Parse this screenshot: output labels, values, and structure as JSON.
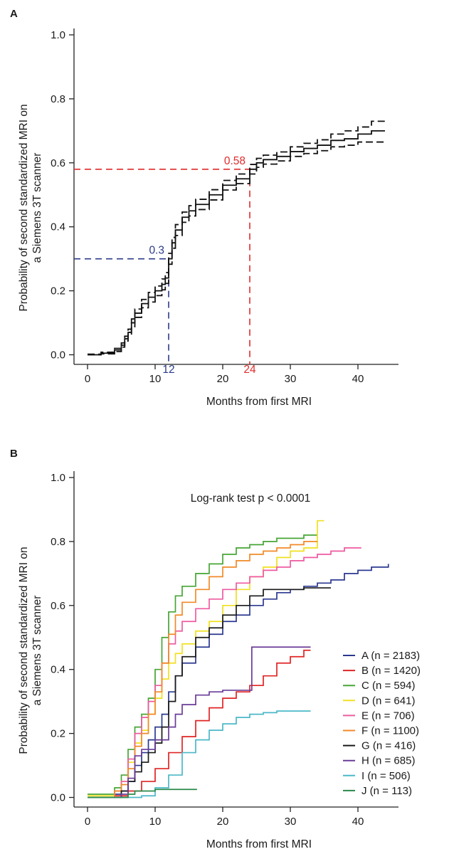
{
  "chart_data": [
    {
      "panel": "A",
      "type": "line",
      "xlabel": "Months from first MRI",
      "ylabel_line1": "Probability of second standardized MRI on",
      "ylabel_line2": "a Siemens 3T scanner",
      "xlim": [
        -2,
        46
      ],
      "ylim": [
        -0.03,
        1.02
      ],
      "xticks": [
        "0",
        "10",
        "20",
        "30",
        "40"
      ],
      "yticks": [
        "0.0",
        "0.2",
        "0.4",
        "0.6",
        "0.8",
        "1.0"
      ],
      "annotations": [
        {
          "label_x": "12",
          "label_y": "0.3",
          "x": 12,
          "y": 0.3,
          "color": "#2a3a8a"
        },
        {
          "label_x": "24",
          "label_y": "0.58",
          "x": 24,
          "y": 0.58,
          "color": "#e02b2b"
        }
      ],
      "series": [
        {
          "name": "estimate",
          "style": "solid",
          "x": [
            0,
            2,
            4,
            5,
            5.5,
            6,
            6.5,
            7,
            8,
            9,
            10,
            11,
            11.5,
            12,
            12.5,
            13,
            14,
            15,
            16,
            18,
            20,
            22,
            24,
            25,
            26,
            28,
            30,
            32,
            34,
            36,
            38,
            40,
            42,
            44
          ],
          "y": [
            0,
            0.005,
            0.015,
            0.03,
            0.05,
            0.07,
            0.1,
            0.13,
            0.16,
            0.18,
            0.2,
            0.22,
            0.24,
            0.3,
            0.35,
            0.39,
            0.43,
            0.45,
            0.47,
            0.5,
            0.53,
            0.55,
            0.58,
            0.6,
            0.61,
            0.62,
            0.635,
            0.645,
            0.655,
            0.67,
            0.675,
            0.69,
            0.7,
            0.7
          ]
        },
        {
          "name": "upper 95% CI",
          "style": "dashed",
          "x": [
            0,
            2,
            4,
            5,
            5.5,
            6,
            6.5,
            7,
            8,
            9,
            10,
            11,
            11.5,
            12,
            12.5,
            13,
            14,
            15,
            16,
            18,
            20,
            22,
            24,
            25,
            26,
            28,
            30,
            32,
            34,
            36,
            38,
            40,
            42,
            44
          ],
          "y": [
            0.002,
            0.008,
            0.02,
            0.037,
            0.058,
            0.08,
            0.112,
            0.143,
            0.173,
            0.195,
            0.215,
            0.237,
            0.257,
            0.317,
            0.367,
            0.407,
            0.446,
            0.466,
            0.486,
            0.516,
            0.545,
            0.565,
            0.595,
            0.614,
            0.624,
            0.634,
            0.65,
            0.661,
            0.672,
            0.69,
            0.7,
            0.712,
            0.73,
            0.73
          ]
        },
        {
          "name": "lower 95% CI",
          "style": "dashed",
          "x": [
            0,
            2,
            4,
            5,
            5.5,
            6,
            6.5,
            7,
            8,
            9,
            10,
            11,
            11.5,
            12,
            12.5,
            13,
            14,
            15,
            16,
            18,
            20,
            22,
            24,
            25,
            26,
            28,
            30,
            32,
            34,
            36,
            38,
            40,
            42,
            44
          ],
          "y": [
            0,
            0.003,
            0.01,
            0.024,
            0.043,
            0.06,
            0.088,
            0.117,
            0.147,
            0.165,
            0.185,
            0.203,
            0.223,
            0.283,
            0.333,
            0.373,
            0.414,
            0.434,
            0.454,
            0.484,
            0.515,
            0.535,
            0.565,
            0.586,
            0.596,
            0.606,
            0.62,
            0.629,
            0.638,
            0.65,
            0.655,
            0.665,
            0.665,
            0.665
          ]
        }
      ]
    },
    {
      "panel": "B",
      "type": "line",
      "title": "Log-rank test p < 0.0001",
      "xlabel": "Months from first MRI",
      "ylabel_line1": "Probability of second standardized MRI on",
      "ylabel_line2": "a Siemens 3T scanner",
      "xlim": [
        -2,
        46
      ],
      "ylim": [
        -0.03,
        1.02
      ],
      "xticks": [
        "0",
        "10",
        "20",
        "30",
        "40"
      ],
      "yticks": [
        "0.0",
        "0.2",
        "0.4",
        "0.6",
        "0.8",
        "1.0"
      ],
      "legend_placement": "bottom-right",
      "series": [
        {
          "name": "A (n = 2183)",
          "color": "#2b3990",
          "x": [
            0,
            4,
            5,
            6,
            7,
            8,
            9,
            10,
            11,
            12,
            13,
            14,
            16,
            18,
            20,
            22,
            24,
            26,
            28,
            30,
            32,
            34,
            36,
            38,
            40,
            42,
            44.5
          ],
          "y": [
            0,
            0.01,
            0.02,
            0.05,
            0.1,
            0.14,
            0.18,
            0.22,
            0.26,
            0.33,
            0.38,
            0.42,
            0.47,
            0.51,
            0.55,
            0.57,
            0.6,
            0.62,
            0.64,
            0.65,
            0.66,
            0.67,
            0.68,
            0.7,
            0.71,
            0.72,
            0.73
          ]
        },
        {
          "name": "B (n = 1420)",
          "color": "#e02424",
          "x": [
            0,
            4,
            6,
            8,
            10,
            12,
            14,
            16,
            18,
            20,
            22,
            24,
            26,
            28,
            30,
            32,
            33
          ],
          "y": [
            0,
            0.005,
            0.02,
            0.05,
            0.09,
            0.14,
            0.19,
            0.24,
            0.28,
            0.31,
            0.33,
            0.35,
            0.38,
            0.42,
            0.44,
            0.46,
            0.46
          ]
        },
        {
          "name": "C (n = 594)",
          "color": "#46a535",
          "x": [
            0,
            4,
            5,
            6,
            7,
            8,
            9,
            10,
            11,
            12,
            13,
            14,
            16,
            18,
            20,
            22,
            24,
            26,
            28,
            30,
            32,
            34
          ],
          "y": [
            0.01,
            0.03,
            0.07,
            0.15,
            0.22,
            0.26,
            0.31,
            0.4,
            0.5,
            0.58,
            0.63,
            0.66,
            0.7,
            0.73,
            0.76,
            0.78,
            0.79,
            0.8,
            0.81,
            0.81,
            0.82,
            0.82
          ]
        },
        {
          "name": "D (n = 641)",
          "color": "#f0e020",
          "x": [
            0,
            4,
            5,
            6,
            7,
            8,
            9,
            10,
            11,
            12,
            13,
            14,
            16,
            18,
            20,
            22,
            24,
            26,
            28,
            30,
            32,
            34,
            35
          ],
          "y": [
            0.005,
            0.02,
            0.05,
            0.11,
            0.17,
            0.21,
            0.26,
            0.31,
            0.37,
            0.42,
            0.45,
            0.48,
            0.52,
            0.55,
            0.6,
            0.65,
            0.69,
            0.72,
            0.75,
            0.77,
            0.78,
            0.865,
            0.865
          ]
        },
        {
          "name": "E (n = 706)",
          "color": "#ee5aa0",
          "x": [
            0,
            4,
            5,
            6,
            7,
            8,
            9,
            10,
            11,
            12,
            13,
            14,
            16,
            18,
            20,
            22,
            24,
            26,
            28,
            30,
            32,
            34,
            36,
            38,
            40.5
          ],
          "y": [
            0,
            0.02,
            0.05,
            0.12,
            0.2,
            0.25,
            0.3,
            0.35,
            0.42,
            0.48,
            0.52,
            0.55,
            0.59,
            0.62,
            0.65,
            0.67,
            0.69,
            0.71,
            0.72,
            0.74,
            0.75,
            0.76,
            0.77,
            0.78,
            0.78
          ]
        },
        {
          "name": "F (n = 1100)",
          "color": "#f08a28",
          "x": [
            0,
            4,
            5,
            6,
            7,
            8,
            9,
            10,
            11,
            12,
            13,
            14,
            16,
            18,
            20,
            22,
            24,
            26,
            28,
            30,
            32,
            34
          ],
          "y": [
            0,
            0.02,
            0.04,
            0.09,
            0.16,
            0.2,
            0.26,
            0.33,
            0.42,
            0.51,
            0.57,
            0.61,
            0.65,
            0.69,
            0.72,
            0.74,
            0.76,
            0.77,
            0.78,
            0.79,
            0.8,
            0.8
          ]
        },
        {
          "name": "G (n = 416)",
          "color": "#1a1a1a",
          "x": [
            0,
            5,
            6,
            7,
            8,
            9,
            10,
            11,
            12,
            13,
            14,
            16,
            18,
            20,
            22,
            24,
            26,
            28,
            30,
            32,
            34,
            36
          ],
          "y": [
            0,
            0.02,
            0.05,
            0.08,
            0.11,
            0.14,
            0.17,
            0.22,
            0.3,
            0.38,
            0.44,
            0.5,
            0.53,
            0.57,
            0.6,
            0.63,
            0.65,
            0.65,
            0.65,
            0.655,
            0.655,
            0.655
          ]
        },
        {
          "name": "H (n = 685)",
          "color": "#6a3c98",
          "x": [
            0,
            5,
            6,
            7,
            8,
            10,
            12,
            13,
            14,
            16,
            18,
            20,
            22,
            24.3,
            24.3,
            26,
            28,
            30,
            32,
            33
          ],
          "y": [
            0,
            0.01,
            0.06,
            0.13,
            0.15,
            0.18,
            0.22,
            0.26,
            0.29,
            0.32,
            0.33,
            0.335,
            0.335,
            0.335,
            0.47,
            0.47,
            0.47,
            0.47,
            0.47,
            0.47
          ]
        },
        {
          "name": "I (n = 506)",
          "color": "#4bb8c8",
          "x": [
            0,
            8,
            10,
            12,
            14,
            16,
            18,
            20,
            22,
            24,
            26,
            28,
            30,
            32,
            33
          ],
          "y": [
            0,
            0.005,
            0.03,
            0.07,
            0.14,
            0.18,
            0.21,
            0.23,
            0.25,
            0.26,
            0.265,
            0.27,
            0.27,
            0.27,
            0.27
          ]
        },
        {
          "name": "J (n = 113)",
          "color": "#2a8a4a",
          "x": [
            0,
            6,
            7,
            8,
            9,
            10,
            12,
            14,
            16.2
          ],
          "y": [
            0,
            0.01,
            0.02,
            0.02,
            0.02,
            0.025,
            0.025,
            0.025,
            0.025
          ]
        }
      ]
    }
  ]
}
